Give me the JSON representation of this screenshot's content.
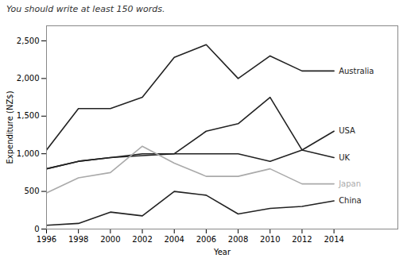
{
  "chart_data": {
    "type": "line",
    "subtitle": "You should write at least 150 words.",
    "xlabel": "Year",
    "ylabel": "Expenditure (NZ$)",
    "x": [
      1996,
      1998,
      2000,
      2002,
      2004,
      2006,
      2008,
      2010,
      2012,
      2014
    ],
    "series": [
      {
        "name": "Australia",
        "color": "#222222",
        "values": [
          1050,
          1600,
          1600,
          1750,
          2280,
          2450,
          2000,
          2300,
          2100,
          2100
        ]
      },
      {
        "name": "USA",
        "color": "#222222",
        "values": [
          800,
          900,
          950,
          1000,
          1000,
          1300,
          1400,
          1750,
          1050,
          1300
        ]
      },
      {
        "name": "UK",
        "color": "#222222",
        "values": [
          800,
          900,
          950,
          975,
          1000,
          1000,
          1000,
          900,
          1050,
          950
        ]
      },
      {
        "name": "Japan",
        "color": "#aaaaaa",
        "values": [
          480,
          680,
          750,
          1100,
          875,
          700,
          700,
          800,
          600,
          600
        ]
      },
      {
        "name": "China",
        "color": "#222222",
        "values": [
          50,
          75,
          225,
          175,
          500,
          450,
          200,
          275,
          300,
          375
        ]
      }
    ],
    "xlim": [
      1996,
      2018
    ],
    "xticks": [
      1996,
      1998,
      2000,
      2002,
      2004,
      2006,
      2008,
      2010,
      2012,
      2014
    ],
    "ylim": [
      0,
      2700
    ],
    "yticks": [
      0,
      500,
      {
        "value": 1000,
        "label": "1,000"
      },
      {
        "value": 1500,
        "label": "1,500"
      },
      {
        "value": 2000,
        "label": "2,000"
      },
      {
        "value": 2500,
        "label": "2,500"
      }
    ],
    "grid": false
  }
}
